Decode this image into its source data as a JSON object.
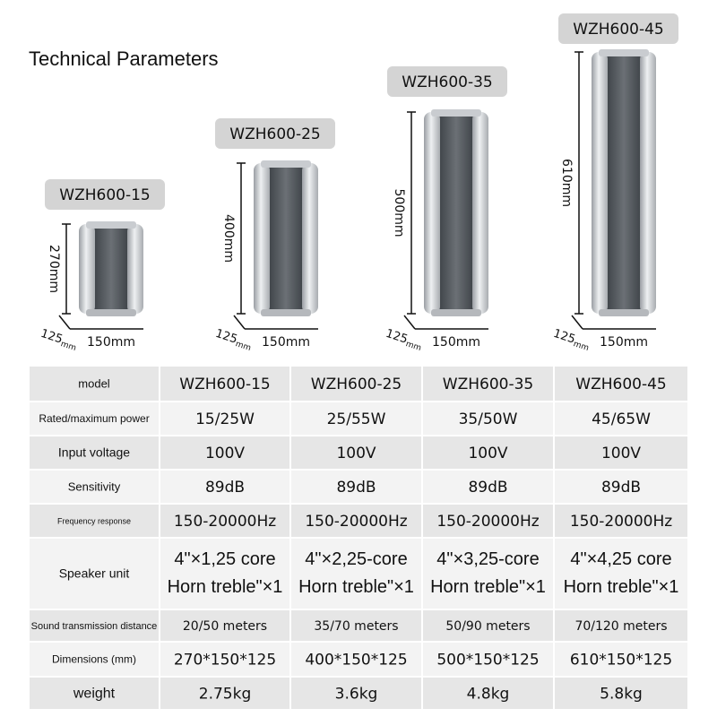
{
  "header": {
    "title": "Technical Parameters"
  },
  "products": [
    {
      "model": "WZH600-15",
      "height": "270mm",
      "depth": "125",
      "depth_unit": "mm",
      "width": "150mm"
    },
    {
      "model": "WZH600-25",
      "height": "400mm",
      "depth": "125",
      "depth_unit": "mm",
      "width": "150mm"
    },
    {
      "model": "WZH600-35",
      "height": "500mm",
      "depth": "125",
      "depth_unit": "mm",
      "width": "150mm"
    },
    {
      "model": "WZH600-45",
      "height": "610mm",
      "depth": "125",
      "depth_unit": "mm",
      "width": "150mm"
    }
  ],
  "table": {
    "rows": [
      [
        "model",
        "WZH600-15",
        "WZH600-25",
        "WZH600-35",
        "WZH600-45"
      ],
      [
        "Rated/maximum power",
        "15/25W",
        "25/55W",
        "35/50W",
        "45/65W"
      ],
      [
        "Input voltage",
        "100V",
        "100V",
        "100V",
        "100V"
      ],
      [
        "Sensitivity",
        "89dB",
        "89dB",
        "89dB",
        "89dB"
      ],
      [
        "Frequency response",
        "150-20000Hz",
        "150-20000Hz",
        "150-20000Hz",
        "150-20000Hz"
      ],
      [
        "Speaker unit",
        [
          "4\"×1,25 core",
          "Horn treble\"×1"
        ],
        [
          "4\"×2,25-core",
          "Horn treble\"×1"
        ],
        [
          "4\"×3,25-core",
          "Horn treble\"×1"
        ],
        [
          "4\"×4,25 core",
          "Horn treble\"×1"
        ]
      ],
      [
        "Sound transmission distance",
        "20/50 meters",
        "35/70 meters",
        "50/90 meters",
        "70/120 meters"
      ],
      [
        "Dimensions (mm)",
        "270*150*125",
        "400*150*125",
        "500*150*125",
        "610*150*125"
      ],
      [
        "weight",
        "2.75kg",
        "3.6kg",
        "4.8kg",
        "5.8kg"
      ]
    ]
  }
}
